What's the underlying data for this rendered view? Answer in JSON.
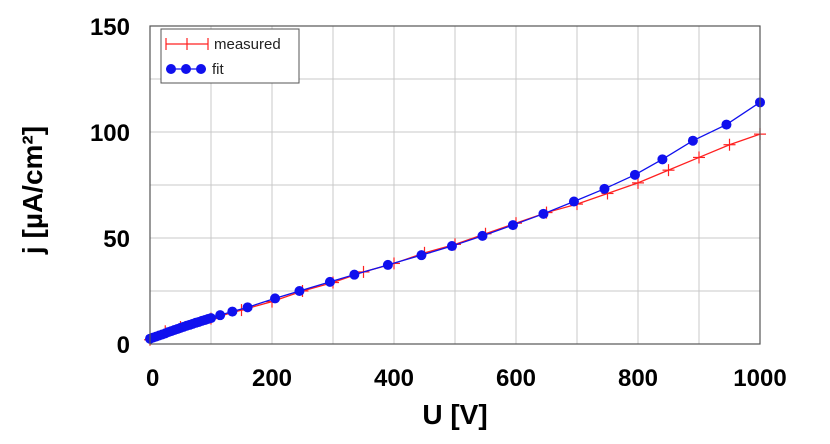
{
  "chart_data": {
    "type": "line",
    "xlabel": "U [V]",
    "ylabel": "j [µA/cm²]",
    "xlim": [
      0,
      1000
    ],
    "ylim": [
      0,
      150
    ],
    "xticks": [
      "0",
      "200",
      "400",
      "600",
      "800",
      "1000"
    ],
    "yticks": [
      "0",
      "50",
      "100",
      "150"
    ],
    "grid": true,
    "legend_position": "top-left",
    "series": [
      {
        "name": "measured",
        "color": "#ff2020",
        "marker": "plus",
        "x": [
          0,
          25,
          50,
          100,
          150,
          200,
          250,
          300,
          350,
          400,
          450,
          500,
          550,
          600,
          650,
          700,
          750,
          800,
          850,
          900,
          950,
          1000
        ],
        "y": [
          2,
          6,
          8,
          12,
          16,
          20,
          25,
          29,
          34,
          38,
          43,
          47,
          52,
          57,
          62,
          66,
          71,
          76,
          82,
          88,
          94,
          99
        ]
      },
      {
        "name": "fit",
        "color": "#1010ee",
        "marker": "circle",
        "x": [
          0,
          5,
          10,
          15,
          20,
          25,
          30,
          35,
          40,
          45,
          50,
          55,
          60,
          65,
          70,
          75,
          80,
          85,
          90,
          95,
          100,
          115,
          135,
          160,
          205,
          245,
          295,
          335,
          390,
          445,
          495,
          545,
          595,
          645,
          695,
          745,
          795,
          840,
          890,
          945,
          1000
        ],
        "y": [
          2.5,
          3,
          3.5,
          4,
          4.5,
          5,
          5.6,
          6.1,
          6.6,
          7.1,
          7.6,
          8.1,
          8.6,
          9,
          9.5,
          10,
          10.4,
          10.9,
          11.3,
          11.8,
          12.2,
          13.6,
          15.3,
          17.3,
          21.5,
          25,
          29.3,
          32.7,
          37.3,
          41.9,
          46.2,
          51,
          56.1,
          61.4,
          67.2,
          73.2,
          79.8,
          87.1,
          95.9,
          103.5,
          114
        ]
      }
    ]
  }
}
